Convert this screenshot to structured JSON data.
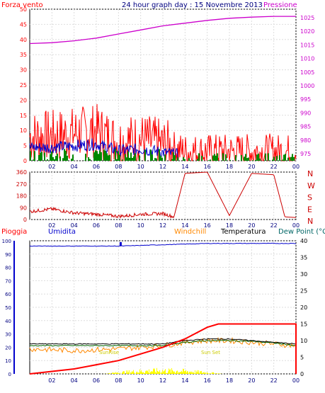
{
  "header": {
    "left_label": "Forza vento",
    "title": "24 hour graph day : 15 Novembre 2013",
    "right_label": "Pressione"
  },
  "wind_panel": {
    "left_ticks": [
      "0",
      "5",
      "10",
      "15",
      "20",
      "25",
      "30",
      "35",
      "40",
      "45",
      "50"
    ],
    "right_ticks": [
      "975",
      "980",
      "985",
      "990",
      "995",
      "1000",
      "1005",
      "1010",
      "1015",
      "1020",
      "1025"
    ],
    "x_ticks": [
      "02",
      "04",
      "06",
      "08",
      "10",
      "12",
      "14",
      "16",
      "18",
      "20",
      "22",
      "00"
    ]
  },
  "dir_panel": {
    "left_ticks": [
      "0",
      "90",
      "180",
      "270",
      "360"
    ],
    "right_labels": [
      "N",
      "W",
      "S",
      "E",
      "N"
    ],
    "x_ticks": [
      "02",
      "04",
      "06",
      "08",
      "10",
      "12",
      "14",
      "16",
      "18",
      "20",
      "22",
      "00"
    ]
  },
  "lower_header": {
    "pioggia": "Pioggia",
    "umidita": "Umidita",
    "windchill": "Windchill",
    "temperatura": "Temperatura",
    "dewpoint": "Dew Point (°C"
  },
  "lower_panel": {
    "left_ticks": [
      "0",
      "10",
      "20",
      "30",
      "40",
      "50",
      "60",
      "70",
      "80",
      "90",
      "100"
    ],
    "right_ticks": [
      "0",
      "5",
      "10",
      "15",
      "20",
      "25",
      "30",
      "35",
      "40"
    ],
    "x_ticks": [
      "02",
      "04",
      "06",
      "08",
      "10",
      "12",
      "14",
      "16",
      "18",
      "20",
      "22",
      "00"
    ],
    "sunrise_label": "SunRise",
    "sunset_label": "Sun Set"
  },
  "colors": {
    "wind": "#ff0000",
    "gust_blue": "#0000cc",
    "wind_green": "#008800",
    "pressure": "#cc00cc",
    "direction": "#cc0000",
    "humidity": "#0000cc",
    "rain": "#ff0000",
    "windchill": "#ff8800",
    "temperature": "#000000",
    "dewpoint": "#006600",
    "solar": "#ffff00"
  },
  "chart_data": [
    {
      "type": "line",
      "title": "24 hour graph day : 15 Novembre 2013",
      "series": [
        {
          "name": "Forza vento",
          "axis": "left",
          "x": [
            0,
            2,
            4,
            6,
            8,
            10,
            12,
            13,
            14,
            16,
            18,
            20,
            22,
            24
          ],
          "values": [
            8,
            8,
            9,
            10,
            6,
            7,
            5,
            4,
            3,
            3,
            3,
            3,
            3,
            3
          ]
        },
        {
          "name": "Pressione",
          "axis": "right",
          "x": [
            0,
            2,
            4,
            6,
            8,
            10,
            12,
            14,
            16,
            18,
            20,
            22,
            24
          ],
          "values": [
            1015.5,
            1015.8,
            1016.5,
            1017.5,
            1019,
            1020.5,
            1022,
            1023,
            1024,
            1024.8,
            1025.2,
            1025.5,
            1025.5
          ]
        }
      ],
      "ylim_left": [
        0,
        50
      ],
      "ylim_right": [
        975,
        1025
      ]
    },
    {
      "type": "line",
      "series": [
        {
          "name": "direction",
          "x": [
            0,
            2,
            4,
            6,
            8,
            9,
            10,
            12,
            13,
            14,
            16,
            18,
            20,
            22,
            23,
            24
          ],
          "values": [
            60,
            80,
            50,
            40,
            25,
            30,
            40,
            45,
            20,
            350,
            360,
            30,
            350,
            340,
            20,
            15
          ]
        }
      ],
      "ylim": [
        0,
        360
      ]
    },
    {
      "type": "line",
      "series": [
        {
          "name": "Umidita",
          "axis": "left",
          "x": [
            0,
            4,
            8,
            12,
            16,
            20,
            24
          ],
          "values": [
            96,
            96,
            96,
            97,
            98,
            98,
            98
          ]
        },
        {
          "name": "Pioggia",
          "axis": "right",
          "x": [
            0,
            4,
            8,
            12,
            14,
            16,
            17,
            20,
            24
          ],
          "values": [
            0,
            1.5,
            4,
            8,
            10.5,
            14,
            15,
            15,
            15
          ]
        },
        {
          "name": "Temperatura",
          "axis": "right",
          "x": [
            0,
            4,
            8,
            12,
            14,
            16,
            18,
            20,
            22,
            24
          ],
          "values": [
            9,
            9,
            9,
            9,
            10,
            10.5,
            10.5,
            10,
            9.5,
            9
          ]
        },
        {
          "name": "Windchill",
          "axis": "right",
          "x": [
            0,
            4,
            8,
            12,
            14,
            16,
            18,
            20,
            22,
            24
          ],
          "values": [
            7.5,
            7,
            7.5,
            8.5,
            9.5,
            10,
            10,
            9.5,
            9,
            8.5
          ]
        },
        {
          "name": "Dew Point",
          "axis": "right",
          "x": [
            0,
            4,
            8,
            12,
            14,
            16,
            18,
            20,
            22,
            24
          ],
          "values": [
            8.5,
            8.5,
            8.5,
            8.5,
            9.5,
            10,
            10,
            9.8,
            9.3,
            8.5
          ]
        }
      ],
      "ylim_left": [
        0,
        100
      ],
      "ylim_right": [
        0,
        40
      ]
    }
  ]
}
